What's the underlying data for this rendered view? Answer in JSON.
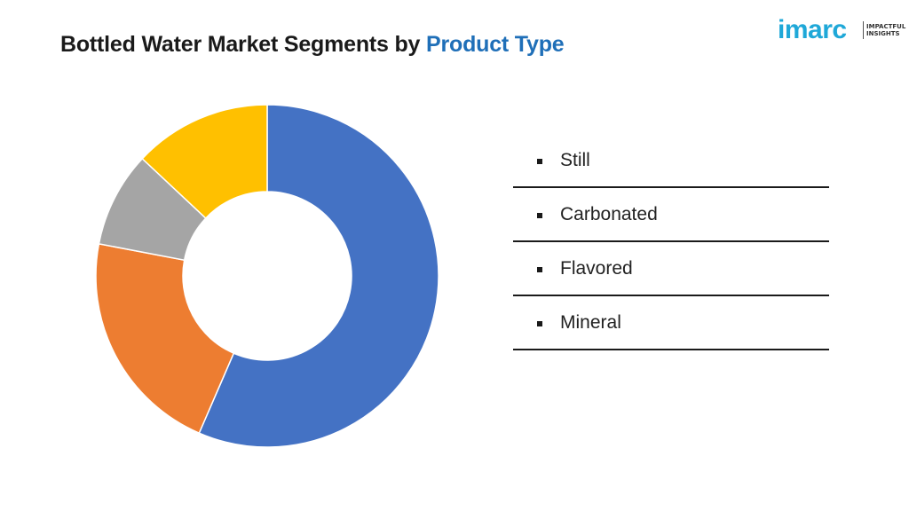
{
  "title": {
    "main": "Bottled Water Market Segments by",
    "accent": "Product Type"
  },
  "logo": {
    "word": "imarc",
    "tagline_1": "IMPACTFUL",
    "tagline_2": "INSIGHTS"
  },
  "colors": {
    "still": "#4472c4",
    "carbonated": "#ed7d31",
    "flavored": "#a5a5a5",
    "mineral": "#ffc000",
    "title_accent": "#1f6fb8",
    "logo": "#1fa8d8"
  },
  "chart_data": {
    "type": "pie",
    "donut": true,
    "categories": [
      "Still",
      "Carbonated",
      "Flavored",
      "Mineral"
    ],
    "values": [
      56.5,
      21.5,
      9.0,
      13.0
    ],
    "legend_position": "right"
  }
}
